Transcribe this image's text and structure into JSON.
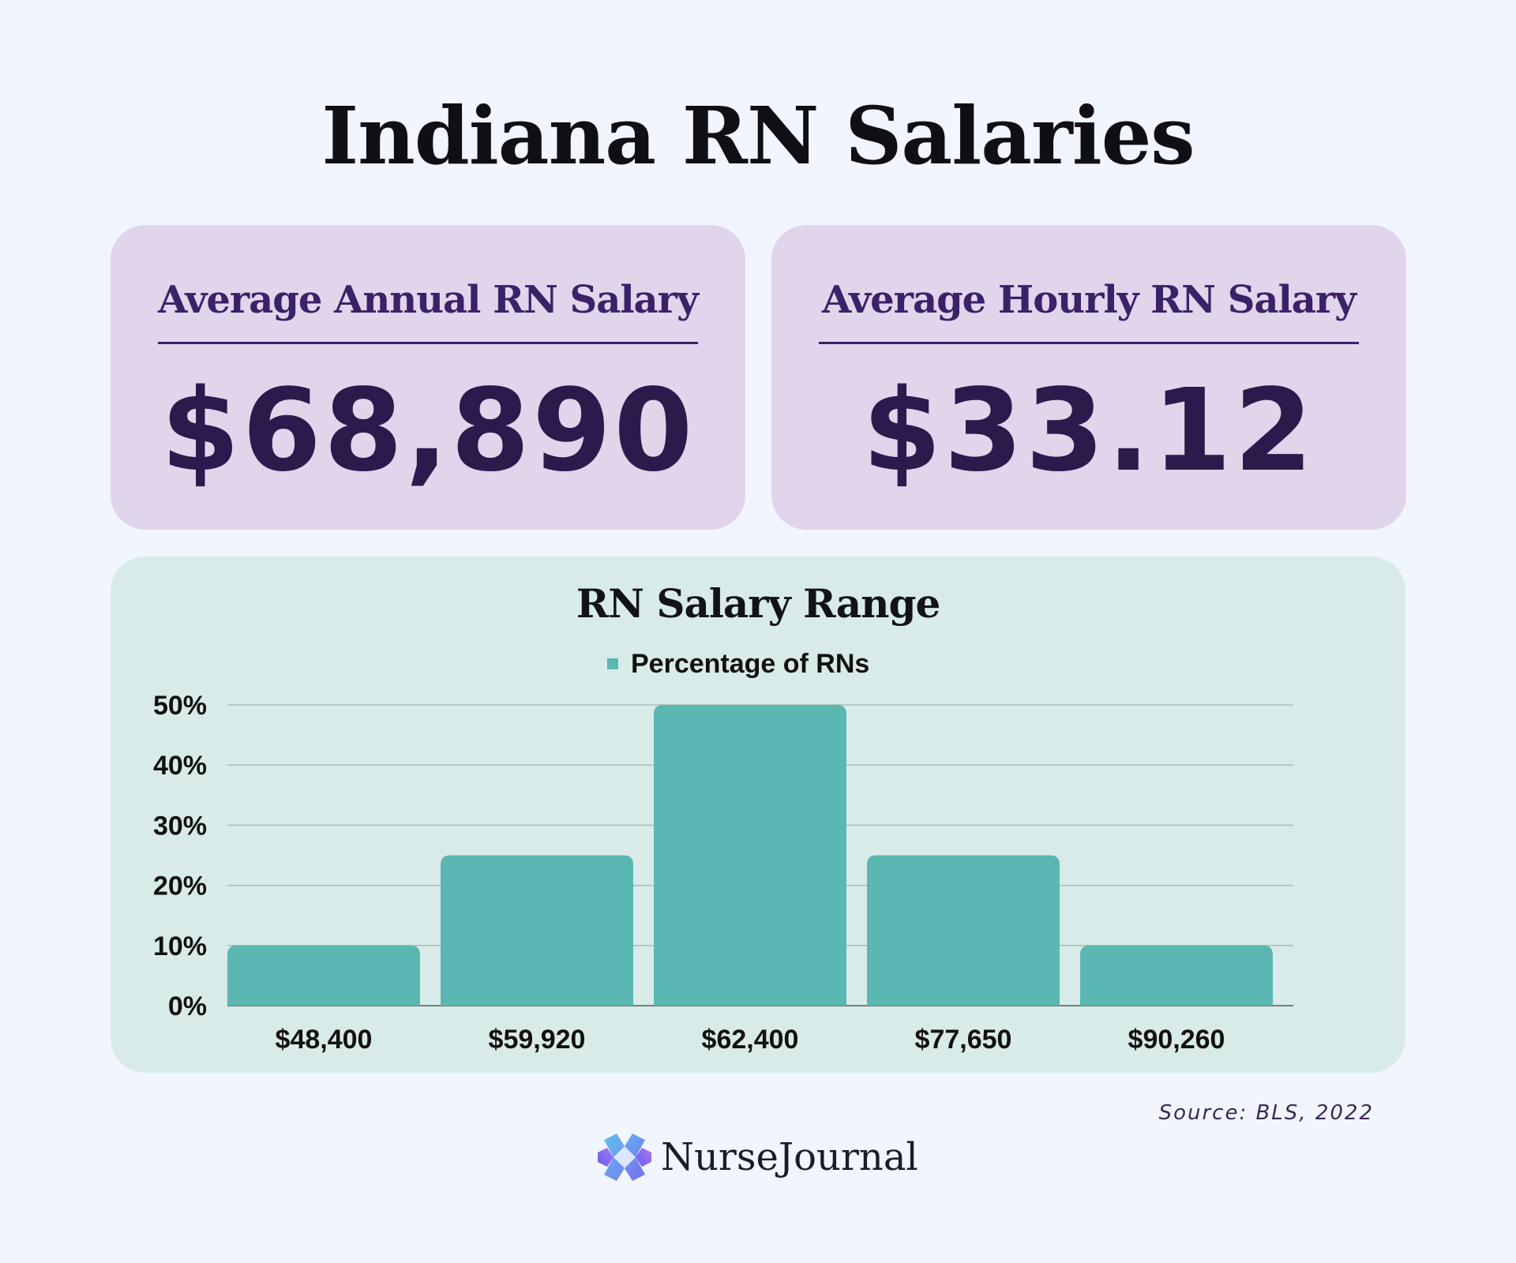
{
  "title": "Indiana RN Salaries",
  "annual_card": {
    "label": "Average Annual RN Salary",
    "value": "$68,890"
  },
  "hourly_card": {
    "label": "Average Hourly RN Salary",
    "value": "$33.12"
  },
  "source": "Source: BLS, 2022",
  "brand": {
    "name": "NurseJournal",
    "icon": "nursejournal-logo-icon"
  },
  "colors": {
    "background": "#f1f5fe",
    "card_purple": "#e1d5ec",
    "card_green": "#d9ebe8",
    "bar": "#5ab7b2",
    "dark_purple": "#2d1a4c"
  },
  "chart_data": {
    "type": "bar",
    "title": "RN Salary Range",
    "legend": "Percentage of RNs",
    "legend_position": "top-center",
    "categories": [
      "$48,400",
      "$59,920",
      "$62,400",
      "$77,650",
      "$90,260"
    ],
    "series": [
      {
        "name": "Percentage of RNs",
        "values": [
          10,
          25,
          50,
          25,
          10
        ]
      }
    ],
    "yticks": [
      "0%",
      "10%",
      "20%",
      "30%",
      "40%",
      "50%"
    ],
    "ylim": [
      0,
      50
    ],
    "grid": true
  }
}
